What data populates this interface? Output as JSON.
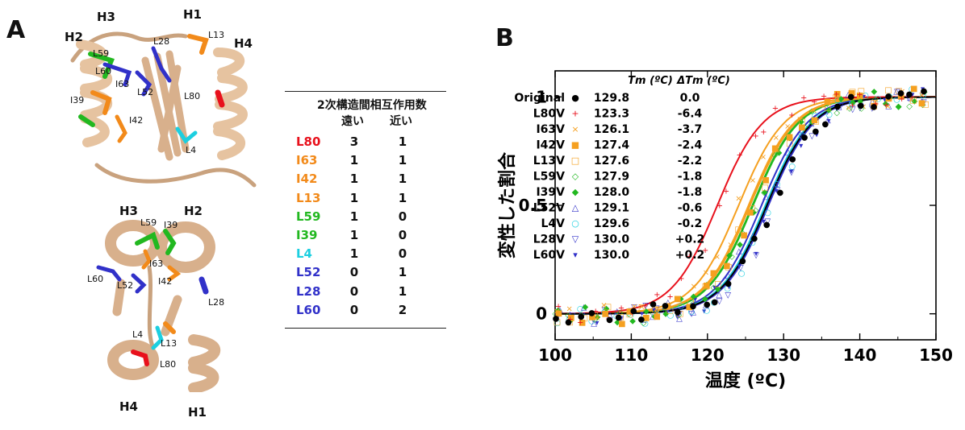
{
  "panels": {
    "a": "A",
    "b": "B"
  },
  "structure_top": {
    "helix_labels": [
      "H1",
      "H2",
      "H3",
      "H4"
    ],
    "residue_labels": [
      "L13",
      "L59",
      "L60",
      "L28",
      "I63",
      "L52",
      "I39",
      "I42",
      "L80",
      "L4"
    ]
  },
  "structure_bottom": {
    "helix_labels": [
      "H3",
      "H2",
      "H4",
      "H1"
    ],
    "residue_labels": [
      "L59",
      "I39",
      "I63",
      "L60",
      "L52",
      "I42",
      "L28",
      "L4",
      "L13",
      "L80"
    ]
  },
  "table": {
    "header_line1": "2次構造間相互作用数",
    "col_far": "遠い",
    "col_near": "近い",
    "rows": [
      {
        "name": "L80",
        "far": "3",
        "near": "1",
        "color": "#e8111c"
      },
      {
        "name": "I63",
        "far": "1",
        "near": "1",
        "color": "#f28a1a"
      },
      {
        "name": "I42",
        "far": "1",
        "near": "1",
        "color": "#f28a1a"
      },
      {
        "name": "L13",
        "far": "1",
        "near": "1",
        "color": "#f28a1a"
      },
      {
        "name": "L59",
        "far": "1",
        "near": "0",
        "color": "#22b820"
      },
      {
        "name": "I39",
        "far": "1",
        "near": "0",
        "color": "#22b820"
      },
      {
        "name": "L4",
        "far": "1",
        "near": "0",
        "color": "#1ccfe0"
      },
      {
        "name": "L52",
        "far": "0",
        "near": "1",
        "color": "#3131c9"
      },
      {
        "name": "L28",
        "far": "0",
        "near": "1",
        "color": "#3131c9"
      },
      {
        "name": "L60",
        "far": "0",
        "near": "2",
        "color": "#3131c9"
      }
    ]
  },
  "chart_data": {
    "type": "scatter",
    "xlabel": "温度 (ºC)",
    "ylabel": "変性した割合",
    "xlim": [
      100,
      150
    ],
    "ylim": [
      -0.12,
      1.12
    ],
    "xticks": [
      "100",
      "110",
      "120",
      "130",
      "140",
      "150"
    ],
    "yticks": [
      "0",
      "0.5",
      "1"
    ],
    "legend_header": {
      "tm": "Tm (ºC)",
      "dtm": "ΔTm (ºC)"
    },
    "series": [
      {
        "name": "Original",
        "tm": "129.8",
        "dtm": "0.0",
        "color": "#000000",
        "marker": "●"
      },
      {
        "name": "L80V",
        "tm": "123.3",
        "dtm": "-6.4",
        "color": "#e8111c",
        "marker": "+"
      },
      {
        "name": "I63V",
        "tm": "126.1",
        "dtm": "-3.7",
        "color": "#f5a020",
        "marker": "×"
      },
      {
        "name": "I42V",
        "tm": "127.4",
        "dtm": "-2.4",
        "color": "#f5a020",
        "marker": "■"
      },
      {
        "name": "L13V",
        "tm": "127.6",
        "dtm": "-2.2",
        "color": "#f5a020",
        "marker": "□"
      },
      {
        "name": "L59V",
        "tm": "127.9",
        "dtm": "-1.8",
        "color": "#22b820",
        "marker": "◇"
      },
      {
        "name": "I39V",
        "tm": "128.0",
        "dtm": "-1.8",
        "color": "#22b820",
        "marker": "◆"
      },
      {
        "name": "L52V",
        "tm": "129.1",
        "dtm": "-0.6",
        "color": "#3131c9",
        "marker": "△"
      },
      {
        "name": "L4V",
        "tm": "129.6",
        "dtm": "-0.2",
        "color": "#1ccfe0",
        "marker": "○"
      },
      {
        "name": "L28V",
        "tm": "130.0",
        "dtm": "+0.2",
        "color": "#3131c9",
        "marker": "▽"
      },
      {
        "name": "L60V",
        "tm": "130.0",
        "dtm": "+0.2",
        "color": "#3131c9",
        "marker": "▾"
      }
    ]
  }
}
